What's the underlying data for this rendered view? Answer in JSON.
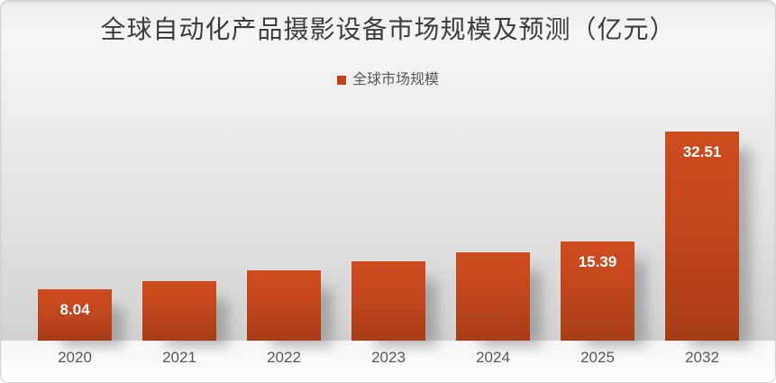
{
  "title": "全球自动化产品摄影设备市场规模及预测（亿元）",
  "legend": {
    "label": "全球市场规模"
  },
  "chart_data": {
    "type": "bar",
    "title": "全球自动化产品摄影设备市场规模及预测（亿元）",
    "unit": "亿元",
    "categories": [
      "2020",
      "2021",
      "2022",
      "2023",
      "2024",
      "2025",
      "2032"
    ],
    "series": [
      {
        "name": "全球市场规模",
        "values": [
          8.04,
          9.3,
          10.9,
          12.4,
          13.7,
          15.39,
          32.51
        ],
        "data_labels": [
          "8.04",
          null,
          null,
          null,
          null,
          "15.39",
          "32.51"
        ]
      }
    ],
    "xlabel": "",
    "ylabel": "",
    "ylim": [
      0,
      33
    ],
    "grid": false,
    "legend_position": "top-center",
    "y_axis_visible": false
  },
  "colors": {
    "bar_top": "#cd4c1e",
    "bar_bottom": "#a63d15",
    "legend_marker": "#c2421c",
    "title_text": "#3d3d3d",
    "axis_text": "#595959",
    "data_label_text": "#ffffff"
  }
}
